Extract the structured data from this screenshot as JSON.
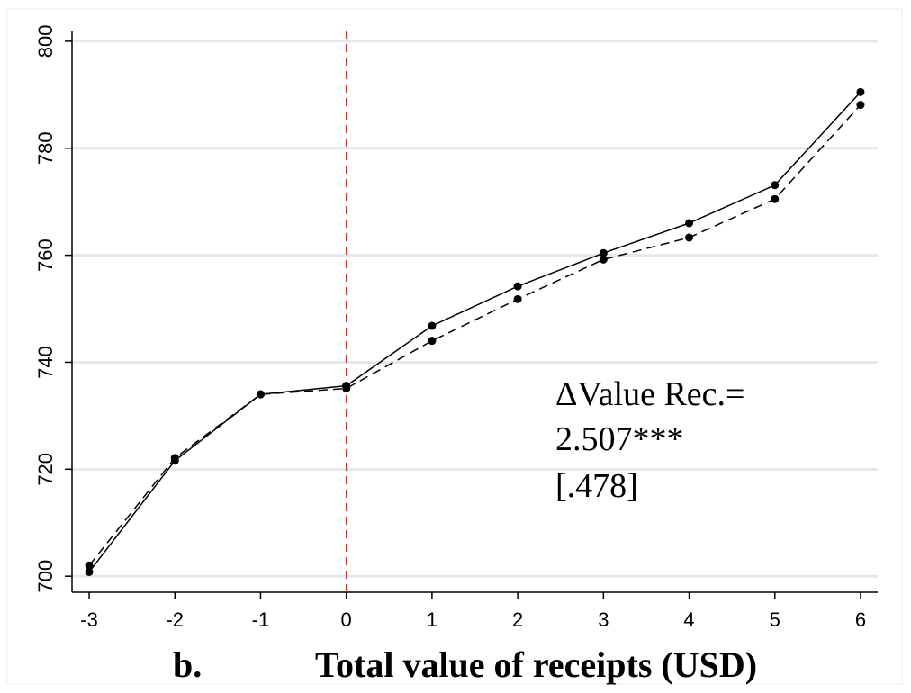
{
  "chart_data": {
    "type": "line",
    "title": "",
    "panel_label": "b.",
    "xlabel": "Total value of receipts (USD)",
    "ylabel": "",
    "x": [
      -3,
      -2,
      -1,
      0,
      1,
      2,
      3,
      4,
      5,
      6
    ],
    "x_tick_labels": [
      "-3",
      "-2",
      "-1",
      "0",
      "1",
      "2",
      "3",
      "4",
      "5",
      "6"
    ],
    "y_ticks": [
      700,
      720,
      740,
      760,
      780,
      800
    ],
    "y_tick_labels": [
      "700",
      "720",
      "740",
      "760",
      "780",
      "800"
    ],
    "xlim": [
      -3.2,
      6.2
    ],
    "ylim": [
      697,
      802
    ],
    "grid": "horizontal",
    "series": [
      {
        "style": "solid",
        "values": [
          700.8,
          721.6,
          734.0,
          735.6,
          746.8,
          754.2,
          760.4,
          766.0,
          773.1,
          790.5
        ]
      },
      {
        "style": "dashed",
        "values": [
          702.0,
          722.1,
          734.0,
          735.1,
          744.0,
          751.8,
          759.2,
          763.3,
          770.5,
          788.1
        ]
      }
    ],
    "reference_line": {
      "x": 0,
      "style": "dashed",
      "color": "#c0392b"
    },
    "annotation": [
      "ΔValue Rec.=",
      "2.507***",
      "[.478]"
    ],
    "colors": {
      "series": "#000000",
      "grid": "#e3e8ec",
      "reference": "#c0392b"
    }
  }
}
